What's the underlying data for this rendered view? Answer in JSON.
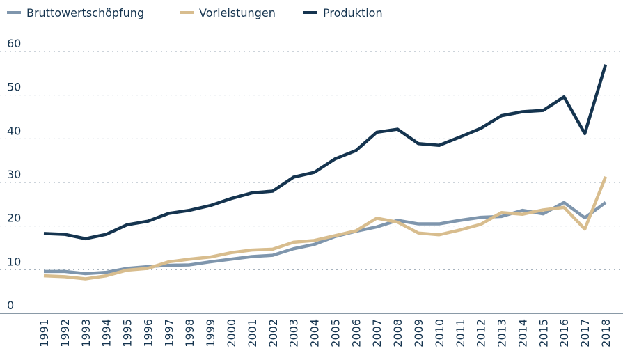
{
  "chart_data": {
    "type": "line",
    "x": [
      "1991",
      "1992",
      "1993",
      "1994",
      "1995",
      "1996",
      "1997",
      "1998",
      "1999",
      "2000",
      "2001",
      "2002",
      "2003",
      "2004",
      "2005",
      "2006",
      "2007",
      "2008",
      "2009",
      "2010",
      "2011",
      "2012",
      "2013",
      "2014",
      "2015",
      "2016",
      "2017",
      "2018"
    ],
    "series": [
      {
        "name": "Bruttowertschöpfung",
        "color": "#7f96ad",
        "values": [
          9.6,
          9.6,
          9.1,
          9.4,
          10.3,
          10.7,
          11.0,
          11.1,
          11.8,
          12.4,
          13.0,
          13.3,
          14.8,
          15.8,
          17.6,
          18.8,
          19.8,
          21.3,
          20.5,
          20.5,
          21.3,
          22.0,
          22.2,
          23.6,
          22.8,
          25.4,
          21.9,
          25.4
        ]
      },
      {
        "name": "Vorleistungen",
        "color": "#d8bd8e",
        "values": [
          8.6,
          8.4,
          7.9,
          8.6,
          9.9,
          10.3,
          11.8,
          12.4,
          12.9,
          13.9,
          14.5,
          14.7,
          16.3,
          16.7,
          17.8,
          18.9,
          21.8,
          20.9,
          18.4,
          18.0,
          19.1,
          20.4,
          23.1,
          22.7,
          23.7,
          24.3,
          19.3,
          31.3
        ]
      },
      {
        "name": "Produktion",
        "color": "#15344f",
        "values": [
          18.3,
          18.1,
          17.1,
          18.1,
          20.3,
          21.1,
          22.9,
          23.6,
          24.7,
          26.3,
          27.6,
          28.0,
          31.2,
          32.3,
          35.4,
          37.3,
          41.5,
          42.2,
          38.9,
          38.5,
          40.4,
          42.4,
          45.3,
          46.2,
          46.5,
          49.6,
          41.2,
          57.0
        ]
      }
    ],
    "ylim": [
      0,
      60
    ],
    "yticks": [
      0,
      10,
      20,
      30,
      40,
      50,
      60
    ],
    "grid": true,
    "legend": "top"
  }
}
